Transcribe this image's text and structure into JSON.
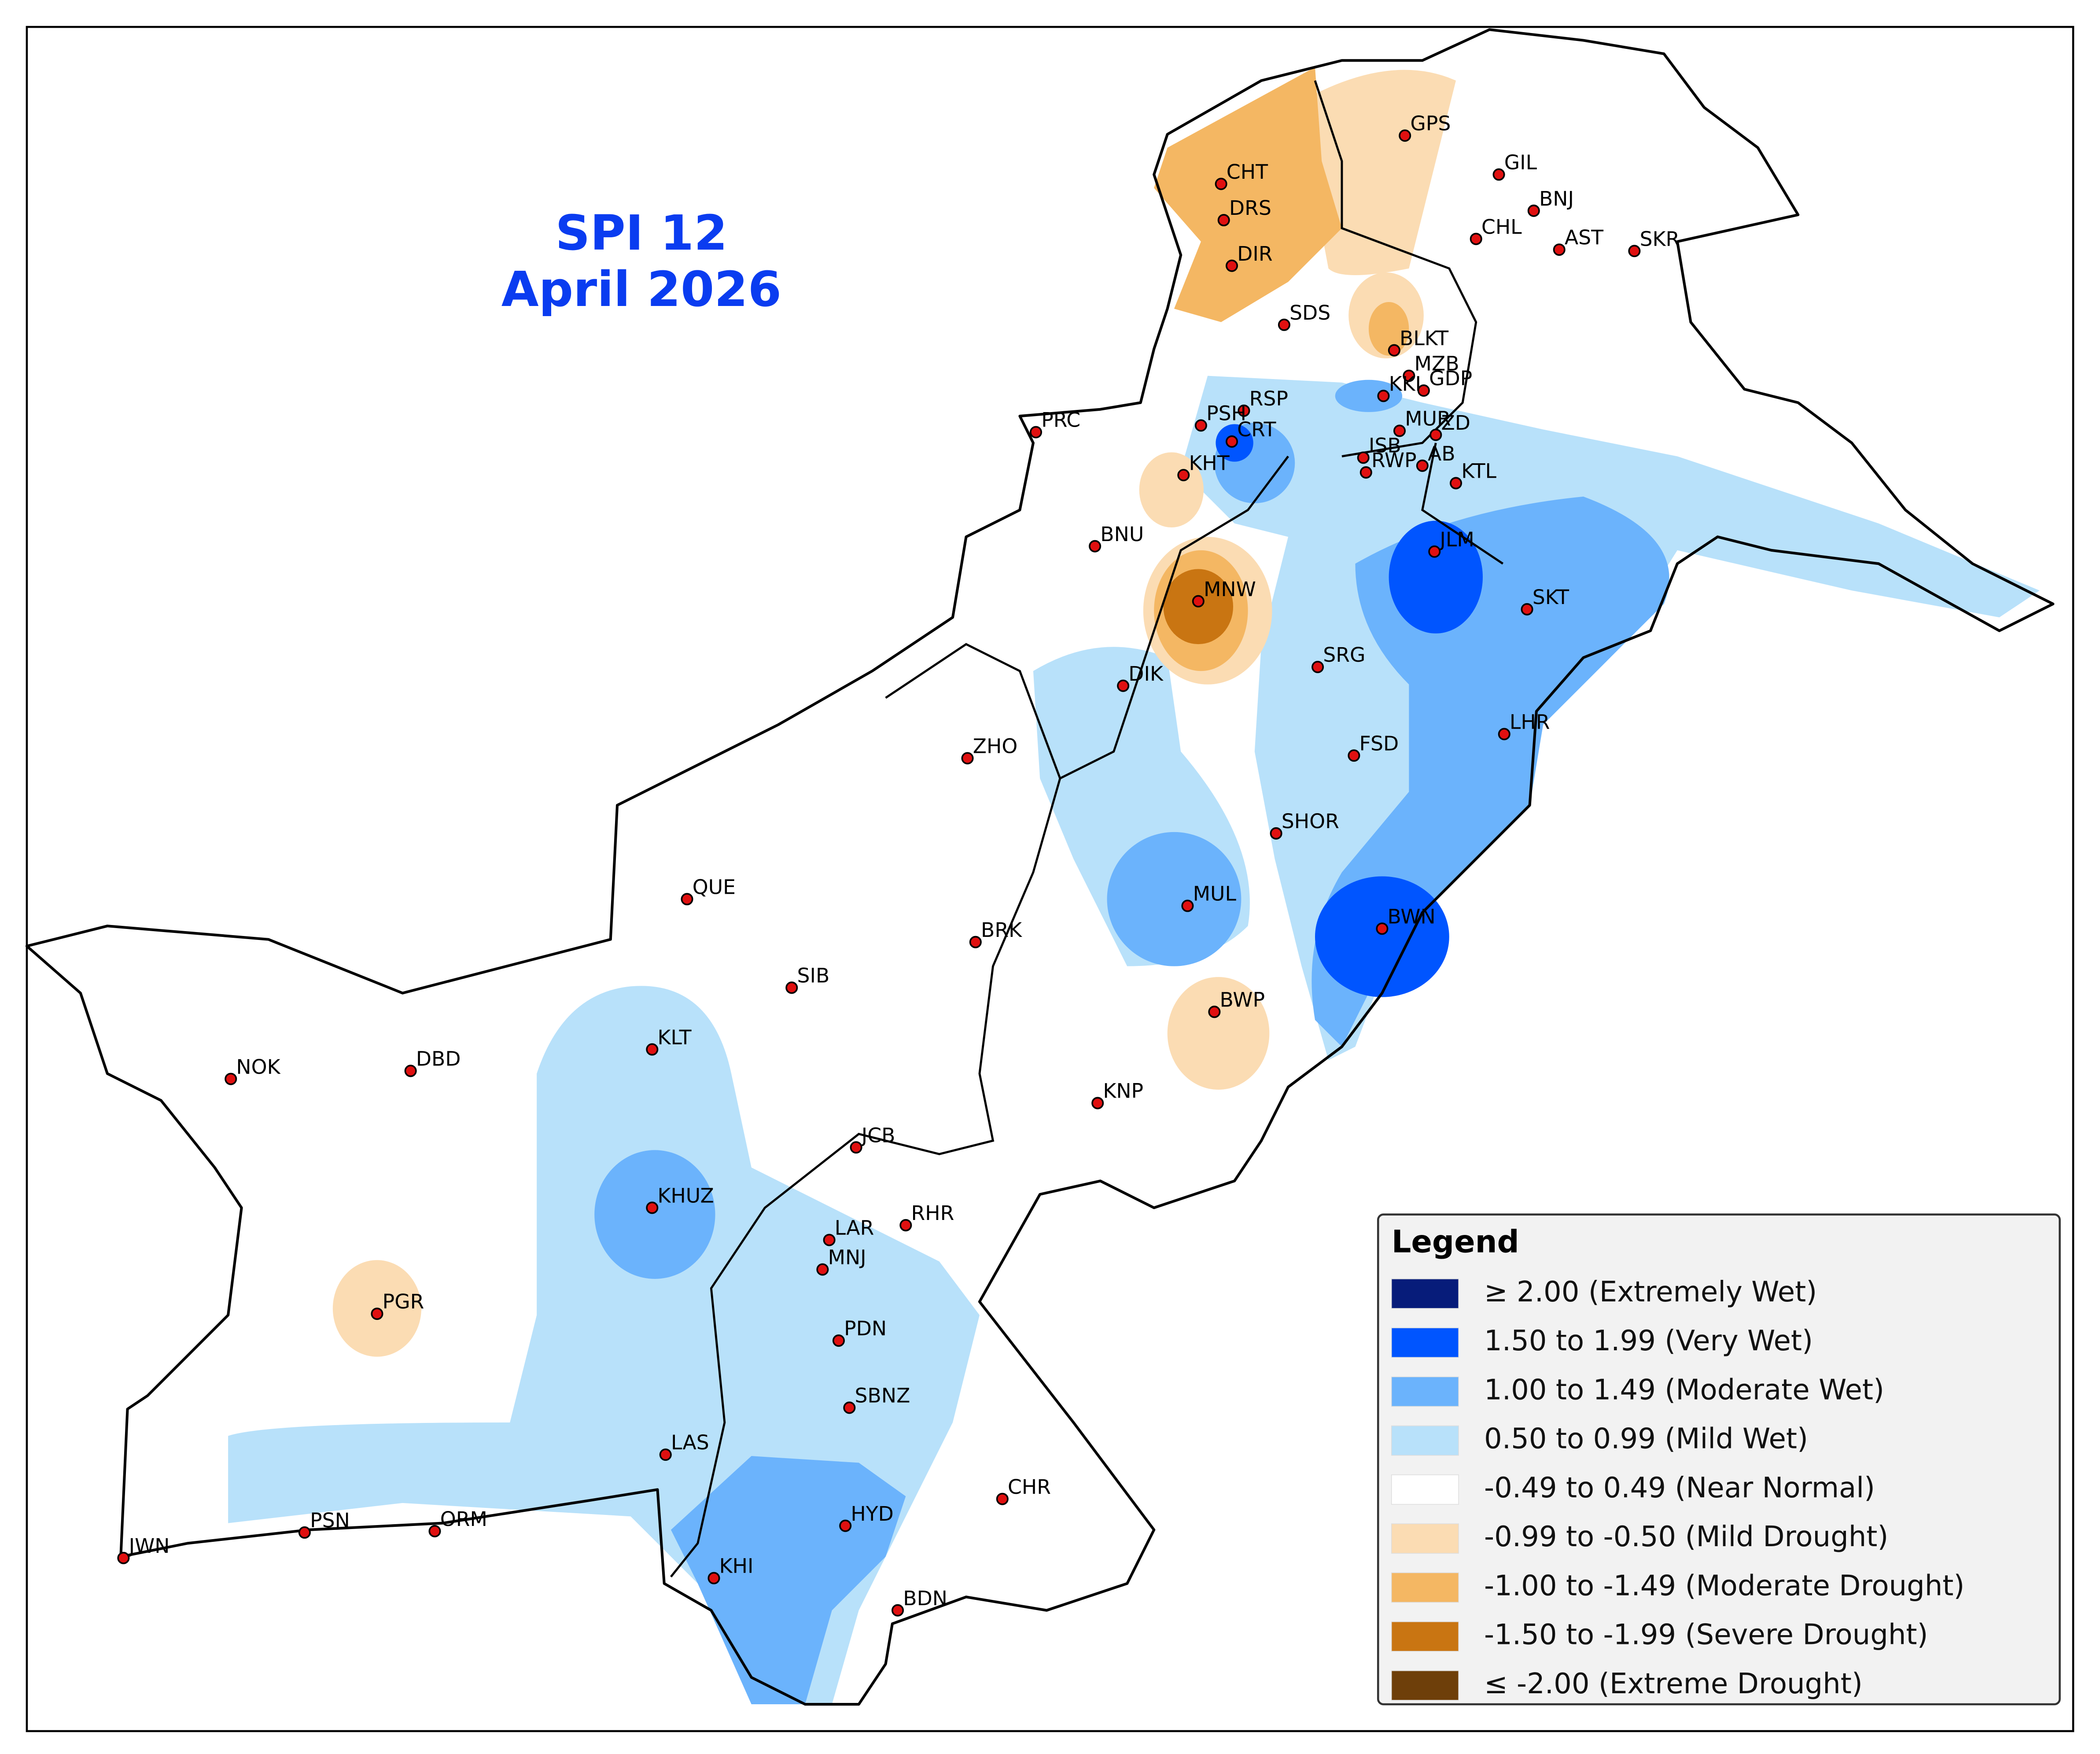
{
  "title": [
    "SPI 12",
    "April 2026"
  ],
  "legend": {
    "title": "Legend",
    "items": [
      {
        "label": "≥ 2.00 (Extremely Wet)",
        "color": "#071c7a"
      },
      {
        "label": "1.50 to 1.99 (Very Wet)",
        "color": "#0055ff"
      },
      {
        "label": "1.00 to 1.49 (Moderate Wet)",
        "color": "#6bb3fc"
      },
      {
        "label": "0.50 to 0.99 (Mild Wet)",
        "color": "#b8e1fa"
      },
      {
        "label": "-0.49 to 0.49 (Near Normal)",
        "color": "#ffffff"
      },
      {
        "label": "-0.99 to -0.50 (Mild Drought)",
        "color": "#fbdcb3"
      },
      {
        "label": "-1.00 to -1.49 (Moderate Drought)",
        "color": "#f4b763"
      },
      {
        "label": "-1.50 to -1.99 (Severe Drought)",
        "color": "#c97512"
      },
      {
        "label": "≤ -2.00 (Extreme Drought)",
        "color": "#6e3f0a"
      }
    ]
  },
  "stations": [
    "GPS",
    "GIL",
    "CHT",
    "BNJ",
    "DRS",
    "CHL",
    "AST",
    "SKR",
    "DIR",
    "SDS",
    "BLKT",
    "MZB",
    "KKI",
    "GDP",
    "RSP",
    "MUR",
    "PRC",
    "PSH",
    "CRT",
    "ISB",
    "ZD",
    "RWP",
    "AB",
    "KTL",
    "KHT",
    "BNU",
    "JLM",
    "MNW",
    "SKT",
    "SRG",
    "DIK",
    "LHR",
    "FSD",
    "ZHO",
    "SHOR",
    "QUE",
    "MUL",
    "BWN",
    "BRK",
    "SIB",
    "BWP",
    "KLT",
    "NOK",
    "DBD",
    "KNP",
    "JCB",
    "KHUZ",
    "RHR",
    "LAR",
    "MNJ",
    "PGR",
    "PDN",
    "SBNZ",
    "LAS",
    "CHR",
    "HYD",
    "PSN",
    "ORM",
    "JWN",
    "KHI",
    "BDN"
  ]
}
